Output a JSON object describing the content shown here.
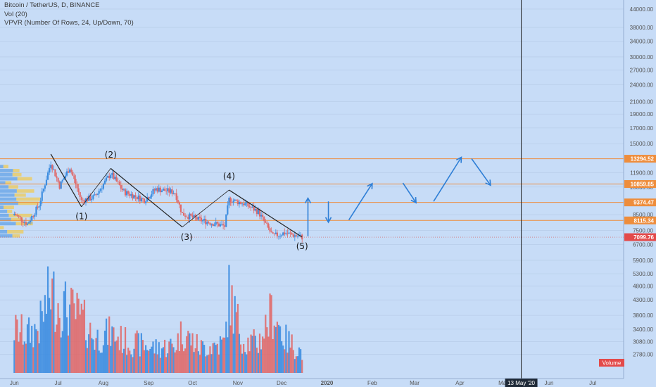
{
  "legend": {
    "symbol_line": "Bitcoin / TetherUS, D, BINANCE",
    "volume_line": "Vol (20)",
    "vpvr_line": "VPVR (Number Of Rows, 24, Up/Down, 70)"
  },
  "volume_tag": "Volume",
  "cursor_date": "13 May '20",
  "colors": {
    "background": "#c7dcf7",
    "up": "#3d8de0",
    "down": "#e06a6a",
    "level": "#ee8d3c",
    "vpvr_up": "#3d8de0",
    "vpvr_down": "#f2c94c",
    "projection": "#2f7fd6",
    "wave_line": "#222222"
  },
  "chart_data": {
    "type": "candlestick",
    "scale": "log",
    "ylim": [
      2550,
      46000
    ],
    "y_ticks": [
      "44000.00",
      "38000.00",
      "34000.00",
      "30000.00",
      "27000.00",
      "24000.00",
      "21000.00",
      "19000.00",
      "17000.00",
      "15000.00",
      "11900.00",
      "10600.00",
      "8500.00",
      "7500.00",
      "6700.00",
      "5900.00",
      "5300.00",
      "4800.00",
      "4300.00",
      "3800.00",
      "3400.00",
      "3080.00",
      "2780.00"
    ],
    "x_labels": [
      "Jun",
      "Jul",
      "Aug",
      "Sep",
      "Oct",
      "Nov",
      "Dec",
      "2020",
      "Feb",
      "Mar",
      "Apr",
      "May",
      "Jun",
      "Jul"
    ],
    "price_levels": [
      {
        "value": 13294.52,
        "label": "13294.52"
      },
      {
        "value": 10859.85,
        "label": "10859.85"
      },
      {
        "value": 9374.47,
        "label": "9374.47"
      },
      {
        "value": 8115.34,
        "label": "8115.34"
      },
      {
        "value": 7099.76,
        "label": "7099.76",
        "current": true
      }
    ],
    "wave_points": [
      {
        "date": "2019-06-26",
        "price": 13800
      },
      {
        "date": "2019-07-17",
        "price": 9050
      },
      {
        "date": "2019-08-06",
        "price": 12300
      },
      {
        "date": "2019-09-24",
        "price": 7700
      },
      {
        "date": "2019-10-26",
        "price": 10350
      },
      {
        "date": "2019-12-15",
        "price": 7100
      }
    ],
    "wave_labels": [
      {
        "text": "(1)",
        "date": "2019-07-17",
        "price": 8200
      },
      {
        "text": "(2)",
        "date": "2019-08-06",
        "price": 13400
      },
      {
        "text": "(3)",
        "date": "2019-09-27",
        "price": 6950
      },
      {
        "text": "(4)",
        "date": "2019-10-26",
        "price": 11300
      },
      {
        "text": "(5)",
        "date": "2019-12-15",
        "price": 6450
      }
    ],
    "projection_arrows": [
      {
        "from": [
          "2019-12-19",
          7150
        ],
        "to": [
          "2019-12-19",
          9700
        ]
      },
      {
        "from": [
          "2020-01-02",
          9450
        ],
        "to": [
          "2020-01-02",
          8000
        ]
      },
      {
        "from": [
          "2020-01-16",
          8150
        ],
        "to": [
          "2020-02-01",
          10900
        ]
      },
      {
        "from": [
          "2020-02-22",
          10950
        ],
        "to": [
          "2020-03-02",
          9350
        ]
      },
      {
        "from": [
          "2020-03-14",
          9450
        ],
        "to": [
          "2020-04-02",
          13450
        ]
      },
      {
        "from": [
          "2020-04-09",
          13300
        ],
        "to": [
          "2020-04-22",
          10750
        ]
      }
    ],
    "anchors": [
      {
        "date": "2019-06-01",
        "price": 8550,
        "vol": 38
      },
      {
        "date": "2019-06-10",
        "price": 7900,
        "vol": 34
      },
      {
        "date": "2019-06-18",
        "price": 9200,
        "vol": 40
      },
      {
        "date": "2019-06-26",
        "price": 12900,
        "vol": 72
      },
      {
        "date": "2019-07-02",
        "price": 10700,
        "vol": 60
      },
      {
        "date": "2019-07-09",
        "price": 12400,
        "vol": 55
      },
      {
        "date": "2019-07-17",
        "price": 9500,
        "vol": 48
      },
      {
        "date": "2019-07-26",
        "price": 9800,
        "vol": 30
      },
      {
        "date": "2019-08-06",
        "price": 11800,
        "vol": 35
      },
      {
        "date": "2019-08-15",
        "price": 10200,
        "vol": 28
      },
      {
        "date": "2019-08-29",
        "price": 9550,
        "vol": 24
      },
      {
        "date": "2019-09-06",
        "price": 10450,
        "vol": 22
      },
      {
        "date": "2019-09-19",
        "price": 10150,
        "vol": 24
      },
      {
        "date": "2019-09-24",
        "price": 8550,
        "vol": 36
      },
      {
        "date": "2019-10-06",
        "price": 8150,
        "vol": 22
      },
      {
        "date": "2019-10-23",
        "price": 7750,
        "vol": 26
      },
      {
        "date": "2019-10-26",
        "price": 9600,
        "vol": 68
      },
      {
        "date": "2019-11-05",
        "price": 9300,
        "vol": 28
      },
      {
        "date": "2019-11-15",
        "price": 8700,
        "vol": 26
      },
      {
        "date": "2019-11-25",
        "price": 7150,
        "vol": 55
      },
      {
        "date": "2019-12-03",
        "price": 7350,
        "vol": 30
      },
      {
        "date": "2019-12-15",
        "price": 7100,
        "vol": 18
      }
    ]
  }
}
